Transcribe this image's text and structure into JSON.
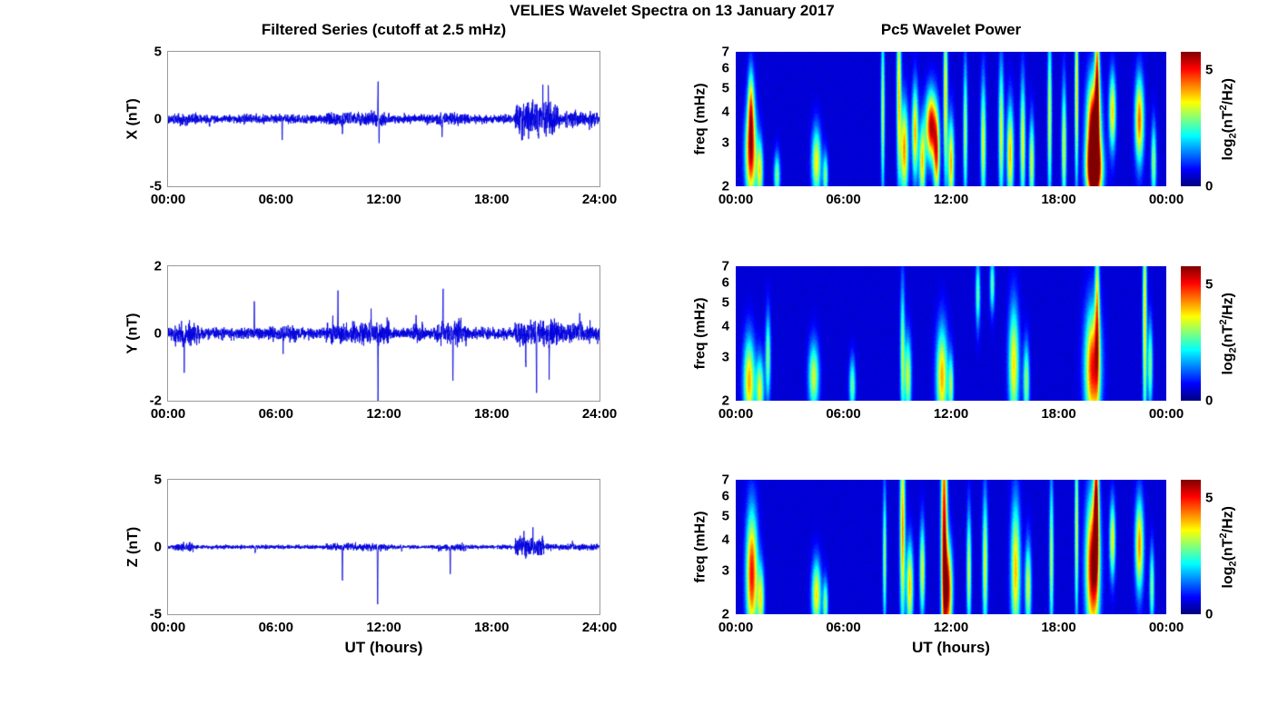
{
  "figure": {
    "title": "VELIES Wavelet Spectra on 13 January 2017",
    "background_color": "#ffffff"
  },
  "chart_data": {
    "type": [
      "line",
      "heatmap"
    ],
    "title": "VELIES Wavelet Spectra on 13 January 2017",
    "left_column": {
      "type": "line",
      "title": "Filtered Series (cutoff at 2.5 mHz)",
      "xlabel": "UT (hours)",
      "xlim_hours": [
        0,
        24
      ],
      "xtick_labels": [
        "00:00",
        "06:00",
        "12:00",
        "18:00",
        "24:00"
      ],
      "line_color": "#0000DD",
      "axis_box_color": "#9a9a9a",
      "subplots": [
        {
          "name": "X",
          "ylabel": "X (nT)",
          "ylim": [
            -5,
            5
          ],
          "yticks": [
            -5,
            0,
            5
          ],
          "noise_amp": 0.15,
          "seed": 101,
          "bursts": [
            [
              0.3,
              1.6,
              1.5
            ],
            [
              8.8,
              12.3,
              1.6
            ],
            [
              14.9,
              16.6,
              1.5
            ],
            [
              19.3,
              21.7,
              4.0
            ],
            [
              21.7,
              23.9,
              1.8
            ]
          ],
          "spikes": [
            [
              2.3,
              -0.5
            ],
            [
              6.35,
              -1.55
            ],
            [
              9.7,
              -1.05
            ],
            [
              11.68,
              2.6
            ],
            [
              11.74,
              -1.85
            ],
            [
              15.25,
              -1.25
            ],
            [
              19.6,
              0.9
            ],
            [
              20.3,
              1.3
            ],
            [
              20.6,
              -1.0
            ],
            [
              20.85,
              1.95
            ],
            [
              21.15,
              1.8
            ]
          ]
        },
        {
          "name": "Y",
          "ylabel": "Y (nT)",
          "ylim": [
            -2,
            2
          ],
          "yticks": [
            -2,
            0,
            2
          ],
          "noise_amp": 0.08,
          "seed": 102,
          "bursts": [
            [
              0.3,
              1.8,
              2.0
            ],
            [
              5.5,
              7.2,
              1.5
            ],
            [
              8.8,
              12.3,
              2.0
            ],
            [
              13.5,
              14.2,
              1.5
            ],
            [
              14.9,
              16.6,
              2.2
            ],
            [
              19.3,
              21.7,
              2.5
            ],
            [
              21.7,
              23.9,
              1.6
            ]
          ],
          "spikes": [
            [
              0.9,
              -0.95
            ],
            [
              4.8,
              1.05
            ],
            [
              6.4,
              -0.45
            ],
            [
              9.45,
              0.95
            ],
            [
              11.3,
              0.6
            ],
            [
              11.68,
              -1.75
            ],
            [
              13.8,
              0.55
            ],
            [
              15.3,
              1.25
            ],
            [
              15.85,
              -1.5
            ],
            [
              19.9,
              -0.85
            ],
            [
              20.5,
              -1.6
            ],
            [
              21.2,
              -1.0
            ],
            [
              22.9,
              0.55
            ]
          ]
        },
        {
          "name": "Z",
          "ylabel": "Z (nT)",
          "ylim": [
            -5,
            5
          ],
          "yticks": [
            -5,
            0,
            5
          ],
          "noise_amp": 0.07,
          "seed": 103,
          "bursts": [
            [
              0.4,
              1.4,
              2.0
            ],
            [
              8.8,
              12.3,
              1.8
            ],
            [
              15.0,
              16.6,
              1.8
            ],
            [
              19.3,
              20.9,
              4.5
            ],
            [
              21.0,
              23.9,
              1.5
            ]
          ],
          "spikes": [
            [
              4.85,
              -0.5
            ],
            [
              9.7,
              -2.55
            ],
            [
              11.66,
              -4.4
            ],
            [
              13.0,
              -0.4
            ],
            [
              15.7,
              -2.05
            ],
            [
              19.8,
              0.9
            ],
            [
              20.3,
              1.05
            ],
            [
              22.5,
              0.5
            ]
          ]
        }
      ]
    },
    "right_column": {
      "type": "heatmap",
      "title": "Pc5 Wavelet Power",
      "xlabel": "UT (hours)",
      "ylabel": "freq (mHz)",
      "xlim_hours": [
        0,
        24
      ],
      "xtick_labels": [
        "00:00",
        "06:00",
        "12:00",
        "18:00",
        "00:00"
      ],
      "freq_lim_mHz": [
        2,
        7
      ],
      "freq_scale": "log",
      "yticks": [
        2,
        3,
        4,
        5,
        6,
        7
      ],
      "clim": [
        0,
        5.8
      ],
      "colorbar_ticks": [
        0,
        5
      ],
      "colorbar_label": {
        "prefix": "log",
        "sub": "2",
        "mid": "(nT",
        "sup": "2",
        "suffix": "/Hz)"
      },
      "colormap": "jet",
      "background_level": 0.4,
      "background_noise": 0.18,
      "blob_format": [
        "t_hours",
        "freq_mHz",
        "sigma_t_hours",
        "sigma_lnf",
        "power_log2"
      ],
      "subplots": [
        {
          "name": "X",
          "seed": 201,
          "blobs": [
            [
              0.85,
              2.7,
              0.22,
              0.3,
              4.6
            ],
            [
              0.85,
              4.2,
              0.12,
              0.25,
              3.0
            ],
            [
              1.35,
              2.3,
              0.12,
              0.2,
              3.0
            ],
            [
              2.3,
              2.2,
              0.12,
              0.15,
              2.4
            ],
            [
              4.5,
              2.5,
              0.18,
              0.22,
              3.2
            ],
            [
              5.0,
              2.2,
              0.1,
              0.15,
              2.4
            ],
            [
              8.2,
              4.0,
              0.07,
              0.55,
              2.8
            ],
            [
              9.1,
              4.8,
              0.09,
              0.55,
              3.4
            ],
            [
              9.4,
              2.8,
              0.15,
              0.3,
              3.8
            ],
            [
              10.0,
              3.3,
              0.12,
              0.3,
              3.6
            ],
            [
              10.4,
              2.5,
              0.12,
              0.25,
              3.4
            ],
            [
              10.9,
              3.5,
              0.22,
              0.22,
              5.0
            ],
            [
              11.2,
              2.6,
              0.12,
              0.25,
              3.8
            ],
            [
              11.7,
              4.6,
              0.08,
              0.55,
              3.4
            ],
            [
              12.0,
              2.5,
              0.12,
              0.28,
              3.6
            ],
            [
              12.8,
              3.3,
              0.08,
              0.45,
              2.7
            ],
            [
              13.8,
              3.0,
              0.1,
              0.4,
              3.0
            ],
            [
              14.8,
              3.3,
              0.1,
              0.45,
              3.0
            ],
            [
              15.3,
              2.7,
              0.13,
              0.32,
              3.5
            ],
            [
              16.0,
              3.0,
              0.1,
              0.4,
              3.1
            ],
            [
              16.5,
              2.5,
              0.1,
              0.28,
              3.0
            ],
            [
              17.5,
              3.8,
              0.08,
              0.55,
              3.0
            ],
            [
              18.3,
              2.9,
              0.09,
              0.4,
              3.0
            ],
            [
              19.0,
              4.8,
              0.07,
              0.6,
              3.4
            ],
            [
              19.95,
              3.2,
              0.26,
              0.35,
              6.3
            ],
            [
              20.0,
              2.3,
              0.3,
              0.18,
              4.8
            ],
            [
              20.15,
              5.5,
              0.09,
              0.4,
              3.8
            ],
            [
              21.0,
              4.0,
              0.13,
              0.25,
              3.4
            ],
            [
              22.5,
              3.7,
              0.17,
              0.28,
              4.0
            ],
            [
              23.3,
              2.5,
              0.1,
              0.25,
              2.6
            ]
          ]
        },
        {
          "name": "Y",
          "seed": 202,
          "blobs": [
            [
              0.75,
              2.4,
              0.22,
              0.28,
              3.6
            ],
            [
              1.35,
              2.2,
              0.15,
              0.22,
              3.0
            ],
            [
              1.8,
              3.0,
              0.1,
              0.28,
              2.5
            ],
            [
              4.35,
              2.5,
              0.2,
              0.22,
              2.9
            ],
            [
              6.5,
              2.3,
              0.12,
              0.18,
              2.3
            ],
            [
              9.3,
              3.1,
              0.09,
              0.45,
              2.6
            ],
            [
              9.6,
              2.5,
              0.13,
              0.26,
              2.9
            ],
            [
              11.5,
              2.5,
              0.22,
              0.32,
              3.6
            ],
            [
              12.0,
              2.3,
              0.1,
              0.2,
              2.5
            ],
            [
              13.5,
              5.4,
              0.09,
              0.22,
              2.3
            ],
            [
              14.3,
              5.9,
              0.09,
              0.18,
              2.3
            ],
            [
              15.5,
              2.8,
              0.2,
              0.38,
              3.3
            ],
            [
              16.2,
              2.4,
              0.12,
              0.25,
              2.6
            ],
            [
              19.9,
              2.7,
              0.3,
              0.38,
              4.6
            ],
            [
              20.15,
              4.6,
              0.09,
              0.5,
              3.1
            ],
            [
              22.8,
              4.3,
              0.08,
              0.75,
              3.3
            ],
            [
              23.1,
              2.8,
              0.1,
              0.28,
              2.5
            ]
          ]
        },
        {
          "name": "Z",
          "seed": 203,
          "blobs": [
            [
              0.9,
              2.9,
              0.22,
              0.4,
              4.6
            ],
            [
              1.4,
              2.3,
              0.13,
              0.22,
              3.0
            ],
            [
              4.5,
              2.4,
              0.18,
              0.22,
              3.3
            ],
            [
              5.0,
              2.2,
              0.1,
              0.16,
              2.5
            ],
            [
              8.3,
              3.4,
              0.07,
              0.45,
              2.6
            ],
            [
              9.3,
              4.4,
              0.1,
              0.62,
              3.8
            ],
            [
              9.7,
              2.6,
              0.13,
              0.28,
              3.5
            ],
            [
              10.4,
              3.0,
              0.1,
              0.3,
              3.1
            ],
            [
              11.62,
              4.0,
              0.12,
              0.8,
              5.0
            ],
            [
              11.85,
              2.5,
              0.16,
              0.3,
              4.4
            ],
            [
              13.0,
              3.0,
              0.09,
              0.38,
              2.9
            ],
            [
              13.9,
              3.2,
              0.1,
              0.45,
              3.0
            ],
            [
              15.6,
              3.0,
              0.18,
              0.45,
              3.5
            ],
            [
              16.3,
              2.6,
              0.12,
              0.28,
              3.0
            ],
            [
              17.6,
              3.4,
              0.08,
              0.5,
              2.8
            ],
            [
              19.0,
              4.4,
              0.07,
              0.6,
              3.0
            ],
            [
              19.9,
              3.1,
              0.26,
              0.45,
              5.3
            ],
            [
              20.1,
              5.6,
              0.1,
              0.45,
              4.4
            ],
            [
              21.0,
              4.0,
              0.11,
              0.25,
              3.2
            ],
            [
              22.5,
              3.8,
              0.16,
              0.3,
              3.8
            ],
            [
              23.2,
              2.6,
              0.09,
              0.25,
              2.5
            ]
          ]
        }
      ]
    }
  }
}
